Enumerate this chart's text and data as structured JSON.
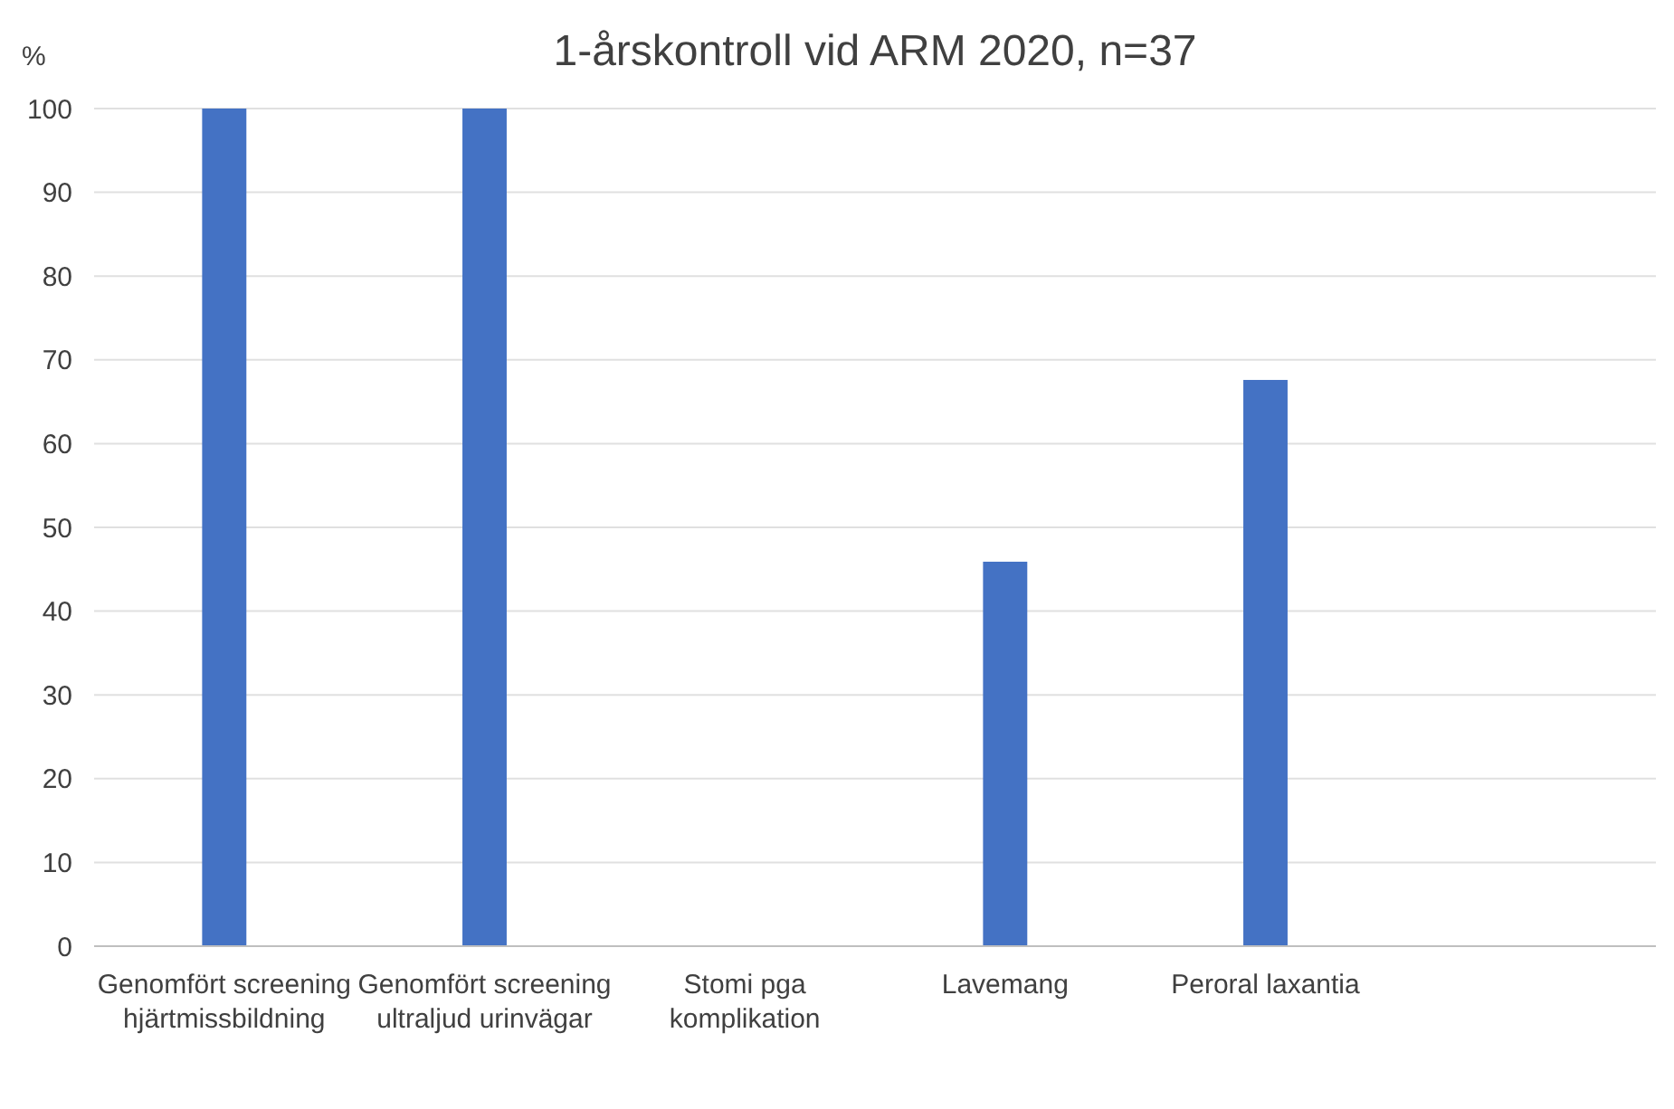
{
  "chart_data": {
    "type": "bar",
    "title": "1-årskontroll vid ARM 2020, n=37",
    "ylabel": "%",
    "categories": [
      "Genomfört screening hjärtmissbildning",
      "Genomfört screening ultraljud urinvägar",
      "Stomi pga komplikation",
      "Lavemang",
      "Peroral laxantia",
      null
    ],
    "values": [
      100,
      100,
      0,
      45.9,
      67.6,
      null
    ],
    "color": "#4472c4",
    "ylim": [
      0,
      100
    ],
    "yticks": [
      0,
      10,
      20,
      30,
      40,
      50,
      60,
      70,
      80,
      90,
      100
    ],
    "grid": "y"
  }
}
